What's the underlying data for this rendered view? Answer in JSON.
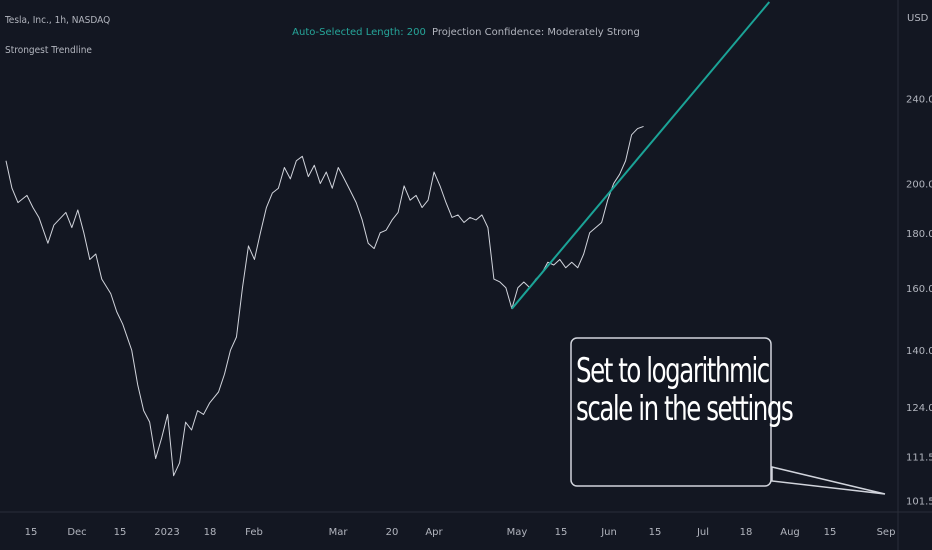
{
  "header": {
    "symbol_line": "Tesla, Inc., 1h, NASDAQ",
    "indicator_name": "Strongest Trendline"
  },
  "status": {
    "length_label": "Auto-Selected Length: 200",
    "confidence_label": "Projection Confidence: Moderately Strong"
  },
  "annotation": {
    "line1": "Set to logarithmic",
    "line2": "scale in the settings"
  },
  "colors": {
    "background": "#131722",
    "price_line": "#d1d4dc",
    "trendline": "#1ba397",
    "grid_text": "#b2b5be",
    "status_teal": "#26a69a"
  },
  "chart_data": {
    "type": "line",
    "y_axis_unit": "USD",
    "y_scale": "log",
    "ylim": [
      99,
      290
    ],
    "y_ticks": [
      "240.00",
      "200.00",
      "180.00",
      "160.00",
      "140.00",
      "124.00",
      "111.50",
      "101.50"
    ],
    "x_ticks": [
      "15",
      "Dec",
      "15",
      "2023",
      "18",
      "Feb",
      "Mar",
      "20",
      "Apr",
      "May",
      "15",
      "Jun",
      "15",
      "Jul",
      "18",
      "Aug",
      "15",
      "Sep"
    ],
    "series": [
      {
        "name": "Tesla, Inc., 1h, NASDAQ",
        "points": [
          [
            "2022-11-08",
            210
          ],
          [
            "2022-11-10",
            198
          ],
          [
            "2022-11-12",
            192
          ],
          [
            "2022-11-15",
            195
          ],
          [
            "2022-11-17",
            190
          ],
          [
            "2022-11-19",
            186
          ],
          [
            "2022-11-22",
            176
          ],
          [
            "2022-11-24",
            183
          ],
          [
            "2022-11-28",
            188
          ],
          [
            "2022-11-30",
            182
          ],
          [
            "2022-12-02",
            189
          ],
          [
            "2022-12-04",
            180
          ],
          [
            "2022-12-06",
            170
          ],
          [
            "2022-12-08",
            172
          ],
          [
            "2022-12-10",
            163
          ],
          [
            "2022-12-13",
            158
          ],
          [
            "2022-12-15",
            152
          ],
          [
            "2022-12-17",
            148
          ],
          [
            "2022-12-20",
            140
          ],
          [
            "2022-12-22",
            130
          ],
          [
            "2022-12-24",
            123
          ],
          [
            "2022-12-26",
            120
          ],
          [
            "2022-12-28",
            111
          ],
          [
            "2022-12-30",
            116
          ],
          [
            "2023-01-01",
            122
          ],
          [
            "2023-01-03",
            107
          ],
          [
            "2023-01-05",
            110
          ],
          [
            "2023-01-07",
            120
          ],
          [
            "2023-01-09",
            118
          ],
          [
            "2023-01-11",
            123
          ],
          [
            "2023-01-13",
            122
          ],
          [
            "2023-01-15",
            125
          ],
          [
            "2023-01-18",
            128
          ],
          [
            "2023-01-20",
            133
          ],
          [
            "2023-01-22",
            140
          ],
          [
            "2023-01-24",
            144
          ],
          [
            "2023-01-26",
            160
          ],
          [
            "2023-01-28",
            175
          ],
          [
            "2023-01-30",
            170
          ],
          [
            "2023-02-01",
            180
          ],
          [
            "2023-02-03",
            190
          ],
          [
            "2023-02-05",
            196
          ],
          [
            "2023-02-07",
            198
          ],
          [
            "2023-02-09",
            207
          ],
          [
            "2023-02-11",
            202
          ],
          [
            "2023-02-13",
            210
          ],
          [
            "2023-02-15",
            212
          ],
          [
            "2023-02-17",
            203
          ],
          [
            "2023-02-19",
            208
          ],
          [
            "2023-02-21",
            200
          ],
          [
            "2023-02-23",
            205
          ],
          [
            "2023-02-25",
            198
          ],
          [
            "2023-02-27",
            207
          ],
          [
            "2023-03-01",
            202
          ],
          [
            "2023-03-03",
            197
          ],
          [
            "2023-03-05",
            192
          ],
          [
            "2023-03-07",
            185
          ],
          [
            "2023-03-09",
            176
          ],
          [
            "2023-03-11",
            174
          ],
          [
            "2023-03-13",
            180
          ],
          [
            "2023-03-15",
            181
          ],
          [
            "2023-03-17",
            185
          ],
          [
            "2023-03-19",
            188
          ],
          [
            "2023-03-21",
            199
          ],
          [
            "2023-03-23",
            193
          ],
          [
            "2023-03-25",
            195
          ],
          [
            "2023-03-27",
            190
          ],
          [
            "2023-03-29",
            193
          ],
          [
            "2023-03-31",
            205
          ],
          [
            "2023-04-02",
            199
          ],
          [
            "2023-04-04",
            192
          ],
          [
            "2023-04-06",
            186
          ],
          [
            "2023-04-08",
            187
          ],
          [
            "2023-04-10",
            184
          ],
          [
            "2023-04-12",
            186
          ],
          [
            "2023-04-14",
            185
          ],
          [
            "2023-04-16",
            187
          ],
          [
            "2023-04-18",
            182
          ],
          [
            "2023-04-20",
            163
          ],
          [
            "2023-04-22",
            162
          ],
          [
            "2023-04-24",
            160
          ],
          [
            "2023-04-26",
            153
          ],
          [
            "2023-04-28",
            160
          ],
          [
            "2023-04-30",
            162
          ],
          [
            "2023-05-02",
            160
          ],
          [
            "2023-05-04",
            163
          ],
          [
            "2023-05-06",
            165
          ],
          [
            "2023-05-08",
            169
          ],
          [
            "2023-05-10",
            168
          ],
          [
            "2023-05-12",
            170
          ],
          [
            "2023-05-14",
            167
          ],
          [
            "2023-05-16",
            169
          ],
          [
            "2023-05-18",
            167
          ],
          [
            "2023-05-20",
            172
          ],
          [
            "2023-05-22",
            180
          ],
          [
            "2023-05-24",
            182
          ],
          [
            "2023-05-26",
            184
          ],
          [
            "2023-05-28",
            193
          ],
          [
            "2023-05-30",
            200
          ],
          [
            "2023-06-01",
            204
          ],
          [
            "2023-06-03",
            210
          ],
          [
            "2023-06-05",
            222
          ],
          [
            "2023-06-07",
            225
          ],
          [
            "2023-06-09",
            226
          ]
        ]
      },
      {
        "name": "Strongest Trendline",
        "points": [
          [
            "2023-04-26",
            153
          ],
          [
            "2023-07-21",
            295
          ]
        ]
      }
    ],
    "grid": false,
    "legend": "none"
  }
}
